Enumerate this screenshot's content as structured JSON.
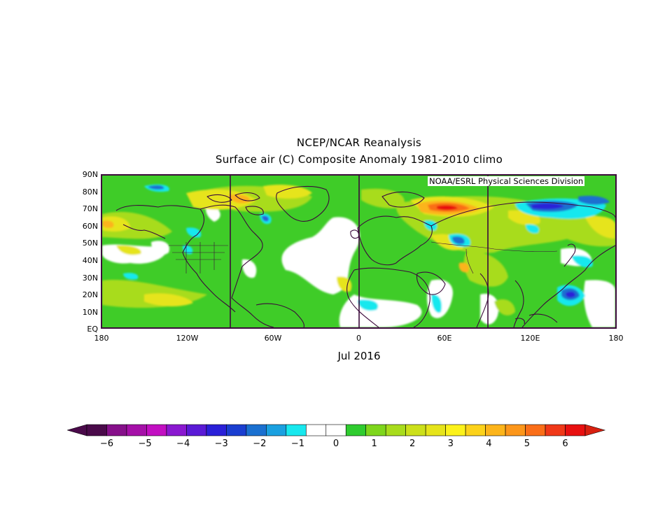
{
  "title": "NCEP/NCAR Reanalysis",
  "subtitle": "Surface air (C) Composite Anomaly 1981-2010 climo",
  "credit": "NOAA/ESRL Physical Sciences Division",
  "date": "Jul 2016",
  "lat_labels": [
    "90N",
    "80N",
    "70N",
    "60N",
    "50N",
    "40N",
    "30N",
    "20N",
    "10N",
    "EQ"
  ],
  "lon_labels": [
    "180",
    "120W",
    "60W",
    "0",
    "60E",
    "120E",
    "180"
  ],
  "colorbar": {
    "tick_labels": [
      "-6",
      "-5",
      "-4",
      "-3",
      "-2",
      "-1",
      "0",
      "1",
      "2",
      "3",
      "4",
      "5",
      "6"
    ],
    "colors": [
      "#4a0a4a",
      "#86108a",
      "#a510a8",
      "#c20fc2",
      "#8a18d0",
      "#5a1ad6",
      "#2a20d8",
      "#1a3ed0",
      "#1a70d0",
      "#1aa0e0",
      "#18e8ee",
      "#ffffff",
      "#ffffff",
      "#2fcc2f",
      "#7ed61c",
      "#a8dc1c",
      "#cce01a",
      "#e6e41a",
      "#fcf21a",
      "#fcd21a",
      "#fcb41a",
      "#fc961a",
      "#fa6e18",
      "#f03818",
      "#e81010"
    ],
    "under_color": "#4a0a4a",
    "over_color": "#d82010"
  },
  "colors": {
    "land_outline": "#3b0a3b",
    "positive_anomaly": "#6ed21a",
    "strong_positive": "#fcb41a",
    "negative_anomaly": "#2a60d8"
  }
}
